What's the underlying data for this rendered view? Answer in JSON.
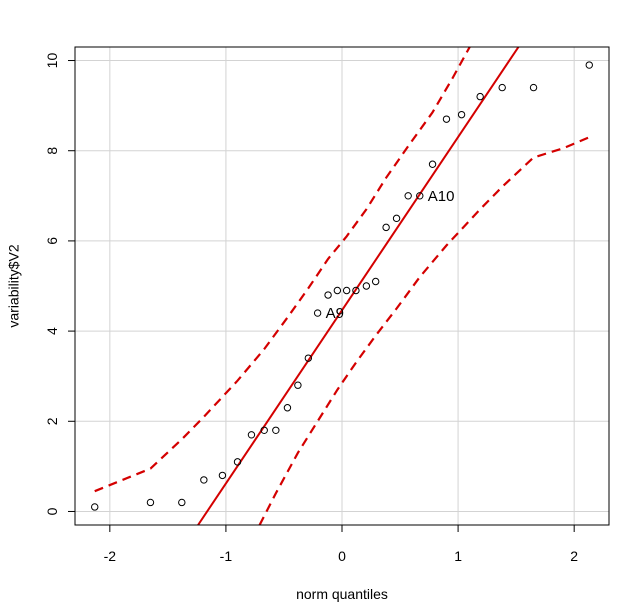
{
  "chart_data": {
    "type": "scatter",
    "title": "",
    "xlabel": "norm quantiles",
    "ylabel": "variability$V2",
    "xlim": [
      -2.3,
      2.3
    ],
    "ylim": [
      -0.3,
      10.3
    ],
    "x_ticks": [
      -2,
      -1,
      0,
      1,
      2
    ],
    "y_ticks": [
      0,
      2,
      4,
      6,
      8,
      10
    ],
    "x_tick_labels": [
      "-2",
      "-1",
      "0",
      "1",
      "2"
    ],
    "y_tick_labels": [
      "0",
      "2",
      "4",
      "6",
      "8",
      "10"
    ],
    "grid": true,
    "points": [
      {
        "x": -2.13,
        "y": 0.1
      },
      {
        "x": -1.65,
        "y": 0.2
      },
      {
        "x": -1.38,
        "y": 0.2
      },
      {
        "x": -1.19,
        "y": 0.7
      },
      {
        "x": -1.03,
        "y": 0.8
      },
      {
        "x": -0.9,
        "y": 1.1
      },
      {
        "x": -0.78,
        "y": 1.7
      },
      {
        "x": -0.67,
        "y": 1.8
      },
      {
        "x": -0.57,
        "y": 1.8
      },
      {
        "x": -0.47,
        "y": 2.3
      },
      {
        "x": -0.38,
        "y": 2.8
      },
      {
        "x": -0.29,
        "y": 3.4
      },
      {
        "x": -0.21,
        "y": 4.4
      },
      {
        "x": -0.12,
        "y": 4.8
      },
      {
        "x": -0.04,
        "y": 4.9
      },
      {
        "x": 0.04,
        "y": 4.9
      },
      {
        "x": 0.12,
        "y": 4.9
      },
      {
        "x": 0.21,
        "y": 5.0
      },
      {
        "x": 0.29,
        "y": 5.1
      },
      {
        "x": 0.38,
        "y": 6.3
      },
      {
        "x": 0.47,
        "y": 6.5
      },
      {
        "x": 0.57,
        "y": 7.0
      },
      {
        "x": 0.67,
        "y": 7.0
      },
      {
        "x": 0.78,
        "y": 7.7
      },
      {
        "x": 0.9,
        "y": 8.7
      },
      {
        "x": 1.03,
        "y": 8.8
      },
      {
        "x": 1.19,
        "y": 9.2
      },
      {
        "x": 1.38,
        "y": 9.4
      },
      {
        "x": 1.65,
        "y": 9.4
      },
      {
        "x": 2.13,
        "y": 9.9
      }
    ],
    "point_labels": [
      {
        "text": "A9",
        "x": -0.21,
        "y": 4.4
      },
      {
        "text": "A10",
        "x": 0.67,
        "y": 7.0
      }
    ],
    "reference_line": {
      "x": [
        -1.24,
        1.52
      ],
      "y": [
        -0.3,
        10.3
      ],
      "color": "#d40000"
    },
    "confidence_band": {
      "color": "#d40000",
      "upper": [
        {
          "x": -2.13,
          "y": 0.45
        },
        {
          "x": -1.65,
          "y": 0.95
        },
        {
          "x": -1.38,
          "y": 1.6
        },
        {
          "x": -1.19,
          "y": 2.1
        },
        {
          "x": -0.9,
          "y": 2.9
        },
        {
          "x": -0.67,
          "y": 3.6
        },
        {
          "x": -0.47,
          "y": 4.3
        },
        {
          "x": -0.29,
          "y": 4.95
        },
        {
          "x": -0.12,
          "y": 5.6
        },
        {
          "x": 0.04,
          "y": 6.1
        },
        {
          "x": 0.21,
          "y": 6.7
        },
        {
          "x": 0.38,
          "y": 7.4
        },
        {
          "x": 0.57,
          "y": 8.1
        },
        {
          "x": 0.78,
          "y": 8.85
        },
        {
          "x": 0.95,
          "y": 9.6
        },
        {
          "x": 1.1,
          "y": 10.3
        }
      ],
      "lower": [
        {
          "x": -0.71,
          "y": -0.3
        },
        {
          "x": -0.57,
          "y": 0.4
        },
        {
          "x": -0.38,
          "y": 1.3
        },
        {
          "x": -0.21,
          "y": 2.0
        },
        {
          "x": -0.04,
          "y": 2.7
        },
        {
          "x": 0.12,
          "y": 3.3
        },
        {
          "x": 0.29,
          "y": 3.9
        },
        {
          "x": 0.47,
          "y": 4.5
        },
        {
          "x": 0.67,
          "y": 5.2
        },
        {
          "x": 0.9,
          "y": 5.9
        },
        {
          "x": 1.19,
          "y": 6.7
        },
        {
          "x": 1.38,
          "y": 7.2
        },
        {
          "x": 1.65,
          "y": 7.85
        },
        {
          "x": 1.9,
          "y": 8.05
        },
        {
          "x": 2.13,
          "y": 8.3
        }
      ]
    }
  }
}
